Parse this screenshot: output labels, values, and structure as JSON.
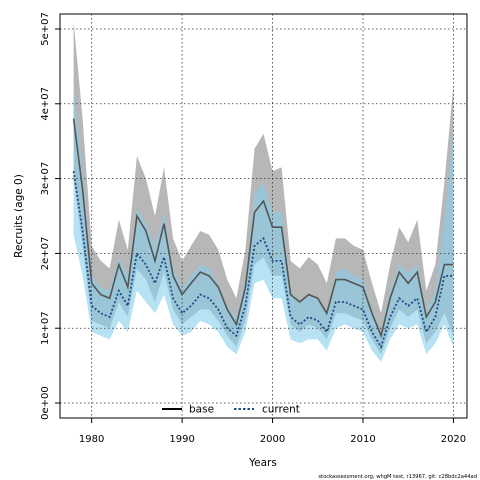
{
  "chart_data": {
    "type": "line",
    "xlabel": "Years",
    "ylabel": "Recruits (age 0)",
    "xlim": [
      1976.5,
      2021.5
    ],
    "ylim": [
      -2000000,
      52000000
    ],
    "x_ticks": [
      1980,
      1990,
      2000,
      2010,
      2020
    ],
    "x_tick_labels": [
      "1980",
      "1990",
      "2000",
      "2010",
      "2020"
    ],
    "y_ticks": [
      0,
      10000000,
      20000000,
      30000000,
      40000000,
      50000000
    ],
    "y_tick_labels": [
      "0e+00",
      "1e+07",
      "2e+07",
      "3e+07",
      "4e+07",
      "5e+07"
    ],
    "grid": true,
    "legend_position": "bottom-center",
    "x": [
      1978,
      1979,
      1980,
      1981,
      1982,
      1983,
      1984,
      1985,
      1986,
      1987,
      1988,
      1989,
      1990,
      1991,
      1992,
      1993,
      1994,
      1995,
      1996,
      1997,
      1998,
      1999,
      2000,
      2001,
      2002,
      2003,
      2004,
      2005,
      2006,
      2007,
      2008,
      2009,
      2010,
      2011,
      2012,
      2013,
      2014,
      2015,
      2016,
      2017,
      2018,
      2019,
      2020
    ],
    "series": [
      {
        "name": "base",
        "color": "#555555",
        "band_color": "#aaaaaa",
        "line_style": "solid",
        "values": [
          38000000,
          28500000,
          16000000,
          14500000,
          14000000,
          18500000,
          15500000,
          25000000,
          23000000,
          19000000,
          24000000,
          17000000,
          14500000,
          16000000,
          17500000,
          17000000,
          15500000,
          12500000,
          10500000,
          15500000,
          25500000,
          27000000,
          23500000,
          23500000,
          14500000,
          13500000,
          14500000,
          14000000,
          12000000,
          16500000,
          16500000,
          16000000,
          15500000,
          12000000,
          9000000,
          14000000,
          17500000,
          16000000,
          17500000,
          11500000,
          13500000,
          18500000,
          18500000
        ],
        "lower": [
          30000000,
          21000000,
          11000000,
          10500000,
          10000000,
          13500000,
          11500000,
          18000000,
          16500000,
          13500000,
          17500000,
          12500000,
          10500000,
          11500000,
          12500000,
          12500000,
          11000000,
          9000000,
          7500000,
          11000000,
          18500000,
          19500000,
          17000000,
          17000000,
          10500000,
          9500000,
          10500000,
          10000000,
          8500000,
          12000000,
          12000000,
          11500000,
          11000000,
          8500000,
          6500000,
          10000000,
          12500000,
          11500000,
          12500000,
          8000000,
          9500000,
          12000000,
          9000000
        ],
        "upper": [
          51000000,
          38000000,
          21000000,
          19000000,
          18000000,
          24500000,
          20500000,
          33000000,
          30000000,
          25000000,
          31500000,
          22000000,
          19000000,
          21000000,
          23000000,
          22500000,
          20500000,
          16500000,
          14000000,
          20500000,
          34000000,
          36000000,
          31000000,
          31500000,
          19000000,
          18000000,
          19500000,
          18500000,
          16000000,
          22000000,
          22000000,
          21000000,
          20500000,
          16000000,
          12000000,
          18500000,
          23500000,
          21500000,
          24500000,
          15000000,
          18500000,
          29500000,
          42500000
        ]
      },
      {
        "name": "current",
        "color": "#1a4a8a",
        "band_color": "#87ceeb",
        "line_style": "dotted",
        "values": [
          31000000,
          23000000,
          13000000,
          12000000,
          11500000,
          15000000,
          13000000,
          20000000,
          18500000,
          16000000,
          19500000,
          14000000,
          12000000,
          13000000,
          14500000,
          14000000,
          12500000,
          10000000,
          9000000,
          13000000,
          21000000,
          22000000,
          19000000,
          19000000,
          11500000,
          10500000,
          11500000,
          11000000,
          9500000,
          13500000,
          13500000,
          13000000,
          12500000,
          9500000,
          7500000,
          11500000,
          14000000,
          13000000,
          14000000,
          9500000,
          11500000,
          17000000,
          17000000
        ],
        "lower": [
          22500000,
          17000000,
          9500000,
          9000000,
          8500000,
          11000000,
          9500000,
          15000000,
          13500000,
          12000000,
          14500000,
          10500000,
          9000000,
          9500000,
          11000000,
          10500000,
          9500000,
          7500000,
          6500000,
          9500000,
          16000000,
          16500000,
          14000000,
          14000000,
          8500000,
          8000000,
          8500000,
          8500000,
          7000000,
          10000000,
          10500000,
          10000000,
          9500000,
          7000000,
          5500000,
          8500000,
          10500000,
          10000000,
          10500000,
          6500000,
          8000000,
          10500000,
          7500000
        ],
        "upper": [
          42000000,
          31000000,
          17000000,
          15500000,
          15000000,
          19500000,
          17000000,
          26000000,
          24000000,
          21000000,
          25500000,
          18000000,
          15500000,
          17000000,
          18500000,
          18000000,
          16000000,
          13000000,
          11500000,
          16500000,
          28000000,
          29500000,
          25500000,
          25500000,
          15000000,
          13500000,
          14500000,
          14000000,
          12000000,
          17500000,
          18000000,
          17000000,
          16500000,
          12500000,
          9500000,
          15000000,
          18500000,
          17500000,
          18500000,
          12500000,
          15000000,
          24500000,
          36500000
        ]
      }
    ]
  },
  "footer": "stockassessment.org, whgM test, r13967, git: c28bdc2a44ad"
}
